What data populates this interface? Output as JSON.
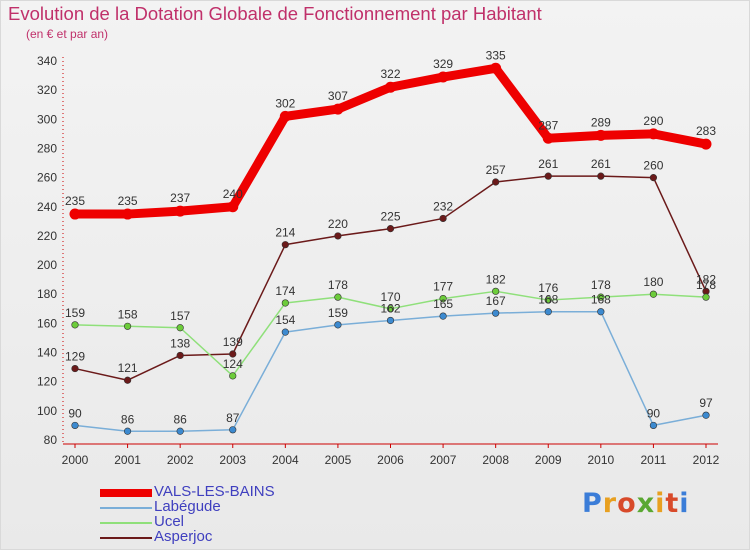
{
  "title": "Evolution de la Dotation Globale de Fonctionnement par Habitant",
  "subtitle": "(en € et par an)",
  "logo": {
    "text": "Proxiti",
    "colors": [
      "#3b7dd8",
      "#e8a020",
      "#d84a2a",
      "#5aa832",
      "#e8a020",
      "#d84a2a",
      "#3b7dd8"
    ]
  },
  "chart_data": {
    "type": "line",
    "title": "Evolution de la Dotation Globale de Fonctionnement par Habitant",
    "subtitle": "(en € et par an)",
    "xlabel": "",
    "ylabel": "",
    "categories": [
      "2000",
      "2001",
      "2002",
      "2003",
      "2004",
      "2005",
      "2006",
      "2007",
      "2008",
      "2009",
      "2010",
      "2011",
      "2012"
    ],
    "ylim": [
      80,
      340
    ],
    "yticks": [
      80,
      100,
      120,
      140,
      160,
      180,
      200,
      220,
      240,
      260,
      280,
      300,
      320,
      340
    ],
    "grid": false,
    "legend_position": "bottom-left",
    "series": [
      {
        "name": "Asperjoc",
        "color": "#6b1a1a",
        "marker": "#6b1a1a",
        "values": [
          129,
          121,
          138,
          139,
          214,
          220,
          225,
          232,
          257,
          261,
          261,
          260,
          182
        ]
      },
      {
        "name": "Ucel",
        "color": "#8fe07a",
        "marker": "#6ccc3a",
        "values": [
          159,
          158,
          157,
          124,
          174,
          178,
          170,
          177,
          182,
          176,
          178,
          180,
          178
        ]
      },
      {
        "name": "Labégude",
        "color": "#7aaed8",
        "marker": "#3c8ad0",
        "values": [
          90,
          86,
          86,
          87,
          154,
          159,
          162,
          165,
          167,
          168,
          168,
          90,
          97
        ]
      },
      {
        "name": "VALS-LES-BAINS",
        "color": "#ee0000",
        "marker": "#ee0000",
        "bold": true,
        "values": [
          235,
          235,
          237,
          240,
          302,
          307,
          322,
          329,
          335,
          287,
          289,
          290,
          283
        ]
      }
    ]
  },
  "legend": [
    {
      "label": "VALS-LES-BAINS",
      "color": "#ee0000",
      "bold": true
    },
    {
      "label": "Labégude",
      "color": "#7aaed8",
      "bold": false
    },
    {
      "label": "Ucel",
      "color": "#8fe07a",
      "bold": false
    },
    {
      "label": "Asperjoc",
      "color": "#6b1a1a",
      "bold": false
    }
  ]
}
